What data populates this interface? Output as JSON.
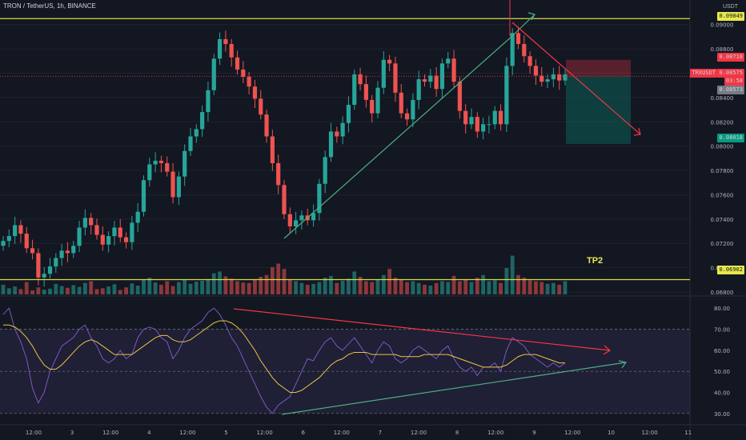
{
  "header": {
    "title": "TRON / TetherUS, 1h, BINANCE",
    "unit": "USDT"
  },
  "colors": {
    "up": "#26a69a",
    "down": "#ef5350",
    "bg": "#131722",
    "yellow": "#d8d846",
    "red_line": "#f23645",
    "green_line": "#4caf84"
  },
  "price_axis": {
    "ticks": [
      "0.09000",
      "0.08800",
      "0.08600",
      "0.08400",
      "0.08200",
      "0.08000",
      "0.07800",
      "0.07600",
      "0.07400",
      "0.07200",
      "0.07000",
      "0.06800"
    ]
  },
  "price_labels": {
    "top_line": "0.09049",
    "stop": "0.08710",
    "pair_tag": "TRXUSDT",
    "current": "0.08575",
    "countdown": "03:58",
    "entry": "0.08573",
    "target": "0.08018",
    "tp2_level": "0.06902"
  },
  "annotations": {
    "tp2": "TP2"
  },
  "rsi_axis": {
    "ticks": [
      "80.00",
      "70.00",
      "60.00",
      "50.00",
      "40.00",
      "30.00"
    ]
  },
  "time_axis": {
    "ticks": [
      "12:00",
      "3",
      "12:00",
      "4",
      "12:00",
      "5",
      "12:00",
      "6",
      "12:00",
      "7",
      "12:00",
      "8",
      "12:00",
      "9",
      "12:00",
      "10",
      "12:00",
      "11"
    ]
  },
  "chart_data": {
    "type": "candlestick",
    "title": "TRON / TetherUS, 1h, BINANCE",
    "ylabel": "USDT",
    "ylim": [
      0.068,
      0.0911
    ],
    "horizontal_levels": [
      0.09049,
      0.06902
    ],
    "price_path": [
      0.0722,
      0.0726,
      0.0735,
      0.0728,
      0.0716,
      0.0712,
      0.0692,
      0.0695,
      0.0701,
      0.0708,
      0.0714,
      0.0712,
      0.0718,
      0.0733,
      0.0741,
      0.0735,
      0.0727,
      0.0719,
      0.0726,
      0.0733,
      0.0725,
      0.0721,
      0.0737,
      0.0746,
      0.0772,
      0.0785,
      0.0788,
      0.0786,
      0.0779,
      0.0758,
      0.0775,
      0.0796,
      0.0808,
      0.0814,
      0.0828,
      0.0846,
      0.0872,
      0.0888,
      0.0884,
      0.0873,
      0.0863,
      0.0857,
      0.0849,
      0.0839,
      0.0826,
      0.0808,
      0.0786,
      0.0768,
      0.0744,
      0.0734,
      0.0739,
      0.0743,
      0.0739,
      0.0745,
      0.0769,
      0.0791,
      0.0812,
      0.0808,
      0.0819,
      0.0834,
      0.0859,
      0.0851,
      0.0838,
      0.0827,
      0.0848,
      0.0871,
      0.0868,
      0.0844,
      0.0827,
      0.0822,
      0.0838,
      0.0855,
      0.0853,
      0.0858,
      0.0847,
      0.0868,
      0.0872,
      0.0853,
      0.0829,
      0.0818,
      0.0824,
      0.0812,
      0.0818,
      0.0818,
      0.0829,
      0.0818,
      0.0866,
      0.0893,
      0.0884,
      0.0874,
      0.0866,
      0.0858,
      0.0853,
      0.0855,
      0.0859,
      0.0854,
      0.0859
    ],
    "rsi_series": {
      "name": "RSI",
      "ylim": [
        25,
        85
      ],
      "upper_band": 70,
      "lower_band": 30,
      "mid_line": 50,
      "values": [
        77,
        80,
        70,
        64,
        56,
        42,
        35,
        40,
        50,
        56,
        62,
        64,
        66,
        70,
        72,
        66,
        62,
        56,
        54,
        56,
        60,
        56,
        58,
        66,
        70,
        71,
        70,
        66,
        64,
        56,
        60,
        66,
        70,
        72,
        74,
        78,
        80,
        77,
        72,
        66,
        62,
        56,
        50,
        44,
        38,
        33,
        30,
        34,
        36,
        38,
        44,
        50,
        56,
        55,
        60,
        64,
        66,
        62,
        60,
        63,
        66,
        62,
        58,
        54,
        60,
        64,
        62,
        56,
        54,
        56,
        60,
        62,
        60,
        58,
        56,
        60,
        62,
        56,
        52,
        50,
        52,
        48,
        52,
        52,
        54,
        50,
        60,
        66,
        64,
        62,
        58,
        56,
        54,
        52,
        54,
        52,
        54
      ],
      "ma_values": [
        72,
        72,
        71,
        69,
        66,
        62,
        57,
        53,
        51,
        51,
        53,
        56,
        59,
        62,
        64,
        65,
        64,
        62,
        60,
        58,
        58,
        58,
        58,
        60,
        62,
        64,
        66,
        67,
        67,
        65,
        64,
        64,
        65,
        67,
        69,
        71,
        73,
        74,
        74,
        73,
        71,
        68,
        64,
        60,
        55,
        51,
        47,
        44,
        42,
        40,
        40,
        41,
        43,
        45,
        47,
        50,
        53,
        55,
        56,
        58,
        59,
        59,
        59,
        58,
        58,
        58,
        58,
        58,
        57,
        57,
        57,
        57,
        58,
        58,
        58,
        58,
        58,
        57,
        56,
        55,
        54,
        53,
        52,
        52,
        52,
        52,
        53,
        55,
        57,
        58,
        58,
        58,
        57,
        56,
        55,
        54,
        54
      ]
    }
  }
}
